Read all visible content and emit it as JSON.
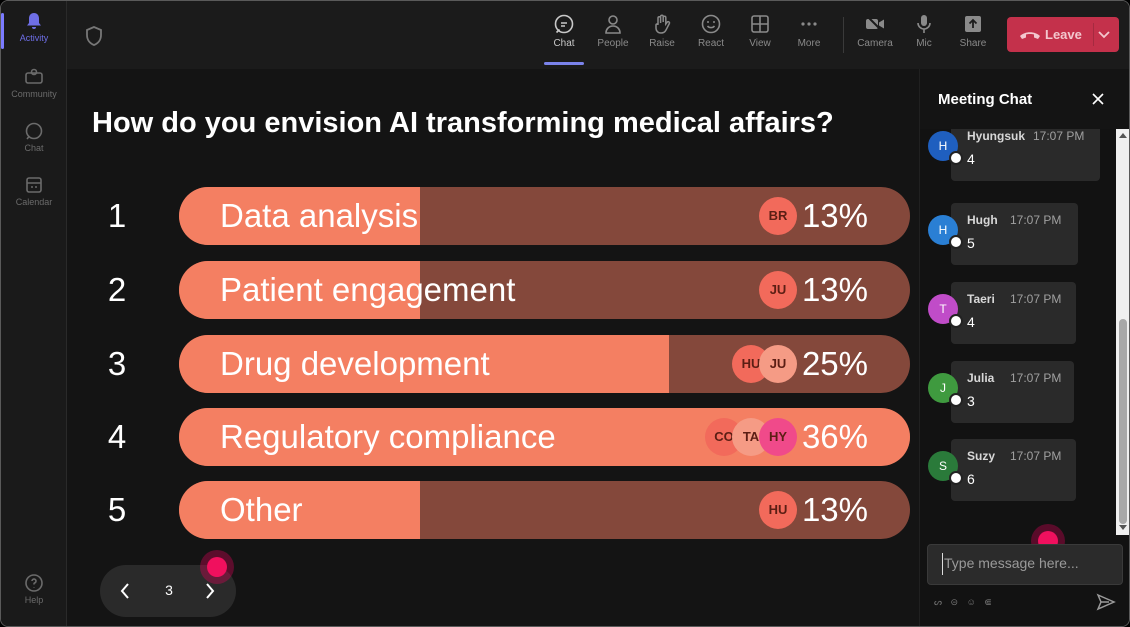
{
  "rail": {
    "items": [
      {
        "label": "Activity",
        "icon": "bell-icon",
        "active": true
      },
      {
        "label": "Community",
        "icon": "community-icon"
      },
      {
        "label": "Chat",
        "icon": "chat-icon"
      },
      {
        "label": "Calendar",
        "icon": "calendar-icon"
      }
    ],
    "help_label": "Help"
  },
  "toolbar": {
    "items": [
      {
        "label": "Chat",
        "icon": "chat-icon",
        "active": true
      },
      {
        "label": "People",
        "icon": "people-icon"
      },
      {
        "label": "Raise",
        "icon": "hand-icon"
      },
      {
        "label": "React",
        "icon": "smiley-icon"
      },
      {
        "label": "View",
        "icon": "grid-icon"
      },
      {
        "label": "More",
        "icon": "more-icon"
      },
      {
        "label": "Camera",
        "icon": "camera-off-icon"
      },
      {
        "label": "Mic",
        "icon": "mic-icon"
      },
      {
        "label": "Share",
        "icon": "share-icon"
      }
    ],
    "leave_label": "Leave"
  },
  "poll": {
    "question": "How do you envision AI transforming medical affairs?",
    "options": [
      {
        "num": "1",
        "label": "Data analysis",
        "percent": 13,
        "percent_label": "13%",
        "voters": [
          {
            "initials": "BR",
            "color": "#f26a5b"
          }
        ]
      },
      {
        "num": "2",
        "label": "Patient engagement",
        "percent": 13,
        "percent_label": "13%",
        "voters": [
          {
            "initials": "JU",
            "color": "#f26a5b"
          }
        ]
      },
      {
        "num": "3",
        "label": "Drug development",
        "percent": 25,
        "percent_label": "25%",
        "voters": [
          {
            "initials": "HU",
            "color": "#f26a5b"
          },
          {
            "initials": "JU",
            "color": "#f59b85"
          }
        ]
      },
      {
        "num": "4",
        "label": "Regulatory compliance",
        "percent": 36,
        "percent_label": "36%",
        "voters": [
          {
            "initials": "CO",
            "color": "#f26a5b"
          },
          {
            "initials": "TA",
            "color": "#f59b85"
          },
          {
            "initials": "HY",
            "color": "#f04a8a"
          }
        ]
      },
      {
        "num": "5",
        "label": "Other",
        "percent": 13,
        "percent_label": "13%",
        "voters": [
          {
            "initials": "HU",
            "color": "#f26a5b"
          }
        ]
      }
    ],
    "fill_fractions": [
      0.33,
      0.33,
      0.67,
      1.0,
      0.33
    ],
    "colors": {
      "fill": "#f47f62",
      "track": "#84483b"
    }
  },
  "pager": {
    "page": "3"
  },
  "chat": {
    "title": "Meeting Chat",
    "messages": [
      {
        "initial": "H",
        "name": "Hyungsuk",
        "time": "17:07 PM",
        "text": "4",
        "color": "#1f5fbf"
      },
      {
        "initial": "H",
        "name": "Hugh",
        "time": "17:07 PM",
        "text": "5",
        "color": "#2a7fd4"
      },
      {
        "initial": "T",
        "name": "Taeri",
        "time": "17:07 PM",
        "text": "4",
        "color": "#c04cc8"
      },
      {
        "initial": "J",
        "name": "Julia",
        "time": "17:07 PM",
        "text": "3",
        "color": "#3f9a3f"
      },
      {
        "initial": "S",
        "name": "Suzy",
        "time": "17:07 PM",
        "text": "6",
        "color": "#2a7a3a"
      }
    ],
    "input_placeholder": "Type message here...",
    "tools": "ᔕ ⊝ ☺ ⋐"
  }
}
